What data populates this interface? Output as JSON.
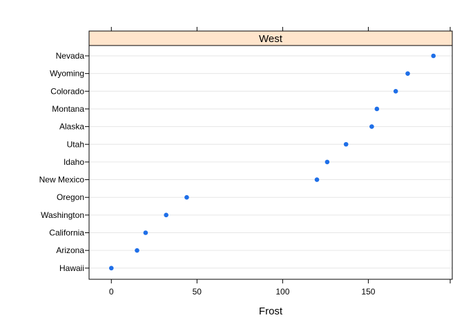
{
  "chart_data": {
    "type": "scatter",
    "panel_title": "West",
    "xlabel": "Frost",
    "ylabel": "",
    "xlim": [
      -13,
      199
    ],
    "xticks": [
      0,
      50,
      100,
      150
    ],
    "categories": [
      "Nevada",
      "Wyoming",
      "Colorado",
      "Montana",
      "Alaska",
      "Utah",
      "Idaho",
      "New Mexico",
      "Oregon",
      "Washington",
      "California",
      "Arizona",
      "Hawaii"
    ],
    "values": [
      188,
      173,
      166,
      155,
      152,
      137,
      126,
      120,
      44,
      32,
      20,
      15,
      0
    ],
    "grid": true,
    "colors": {
      "point": "#1f6fe8",
      "strip_fill": "#ffe5cc",
      "grid": "#e6e6e6",
      "axis": "#000000"
    }
  }
}
